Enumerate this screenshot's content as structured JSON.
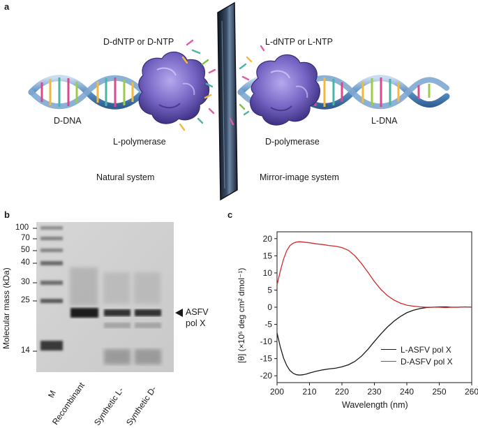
{
  "panel_a": {
    "letter": "a",
    "left_nucleotides": "D-dNTP or D-NTP",
    "right_nucleotides": "L-dNTP or L-NTP",
    "left_dna": "D-DNA",
    "right_dna": "L-DNA",
    "left_enzyme": "L-polymerase",
    "right_enzyme": "D-polymerase",
    "left_system": "Natural system",
    "right_system": "Mirror-image system"
  },
  "panel_b": {
    "letter": "b",
    "ylabel": "Molecular mass (kDa)",
    "markers": [
      "100",
      "70",
      "50",
      "40",
      "30",
      "25",
      "14"
    ],
    "band_label_line1": "ASFV",
    "band_label_line2": "pol X",
    "lanes": [
      "M",
      "Recombinant",
      "Synthetic L-",
      "Synthetic D-"
    ]
  },
  "panel_c": {
    "letter": "c",
    "chart_data": {
      "type": "line",
      "xlabel": "Wavelength (nm)",
      "ylabel": "[θ] (×10⁵ deg cm² dmol⁻¹)",
      "xlim": [
        200,
        260
      ],
      "ylim": [
        -22,
        22
      ],
      "xticks": [
        "200",
        "210",
        "220",
        "230",
        "240",
        "250",
        "260"
      ],
      "yticks": [
        "20",
        "15",
        "10",
        "5",
        "0",
        "-5",
        "-10",
        "-15",
        "-20"
      ],
      "legend_position": "bottom-right",
      "series": [
        {
          "name": "L-ASFV pol X",
          "color": "#1a1a1a",
          "x": [
            200,
            201,
            202,
            203,
            204,
            205,
            206,
            207,
            208,
            209,
            210,
            212,
            214,
            216,
            218,
            220,
            222,
            224,
            226,
            228,
            230,
            232,
            234,
            236,
            238,
            240,
            242,
            244,
            246,
            248,
            250,
            252,
            254,
            256,
            258,
            260
          ],
          "y": [
            -7.5,
            -11.5,
            -14.8,
            -17.0,
            -18.5,
            -19.3,
            -19.7,
            -19.8,
            -19.7,
            -19.5,
            -19.2,
            -18.7,
            -18.3,
            -18.0,
            -17.8,
            -17.4,
            -16.8,
            -15.8,
            -14.3,
            -12.3,
            -10.0,
            -7.8,
            -5.8,
            -4.1,
            -2.7,
            -1.6,
            -0.9,
            -0.4,
            -0.1,
            0.0,
            0.1,
            0.1,
            0.0,
            0.0,
            0.1,
            0.0
          ]
        },
        {
          "name": "D-ASFV pol X",
          "color": "#d42a2a",
          "x": [
            200,
            201,
            202,
            203,
            204,
            205,
            206,
            207,
            208,
            209,
            210,
            212,
            214,
            216,
            218,
            220,
            222,
            224,
            226,
            228,
            230,
            232,
            234,
            236,
            238,
            240,
            242,
            244,
            246,
            248,
            250,
            252,
            254,
            256,
            258,
            260
          ],
          "y": [
            6.5,
            10.5,
            14.0,
            16.5,
            18.0,
            18.7,
            19.0,
            19.1,
            19.0,
            18.9,
            18.8,
            18.5,
            18.3,
            18.0,
            17.8,
            17.4,
            16.6,
            15.0,
            12.8,
            10.2,
            7.5,
            5.2,
            3.4,
            2.1,
            1.2,
            0.6,
            0.3,
            0.1,
            0.0,
            0.0,
            0.0,
            -0.1,
            0.0,
            0.0,
            0.1,
            0.0
          ]
        }
      ]
    }
  },
  "colors": {
    "dna_blue": "#4a7db0",
    "dna_light": "#a9c6e2",
    "protein_purple": "#7b68c4",
    "mirror_dark": "#1a2535",
    "line_black": "#1a1a1a",
    "line_red": "#d42a2a"
  }
}
